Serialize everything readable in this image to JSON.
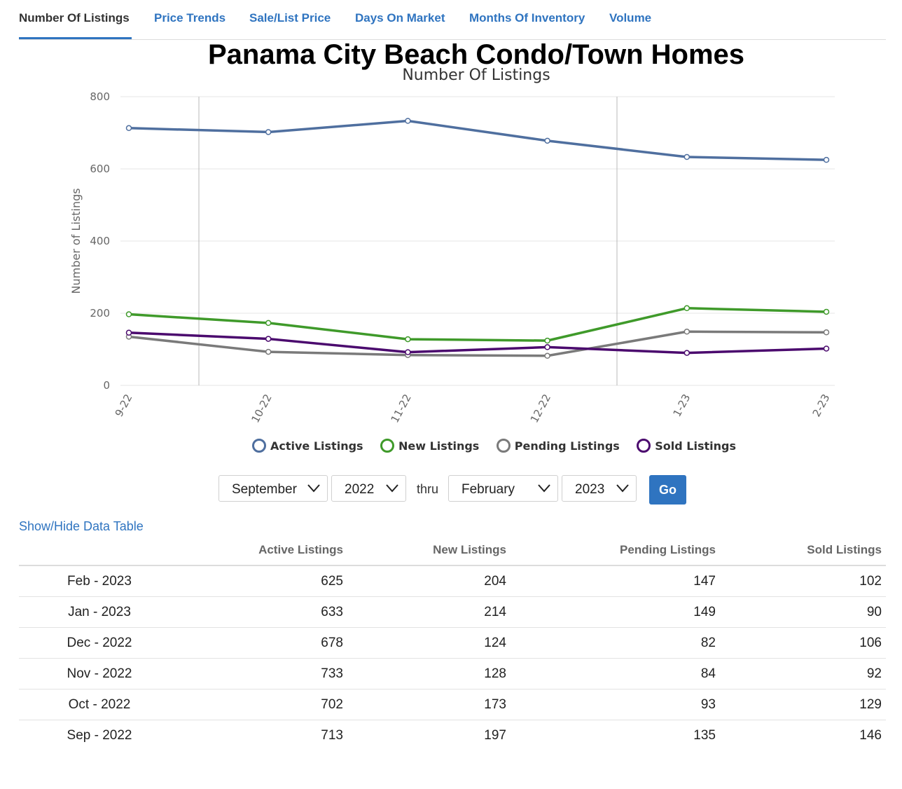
{
  "tabs": [
    {
      "label": "Number Of Listings",
      "active": true
    },
    {
      "label": "Price Trends"
    },
    {
      "label": "Sale/List Price"
    },
    {
      "label": "Days On Market"
    },
    {
      "label": "Months Of Inventory"
    },
    {
      "label": "Volume"
    }
  ],
  "page_title": "Panama City Beach Condo/Town Homes",
  "chart_data": {
    "type": "line",
    "title": "Number Of Listings",
    "ylabel": "Number of Listings",
    "xlabel": "",
    "categories": [
      "9-22",
      "10-22",
      "11-22",
      "12-22",
      "1-23",
      "2-23"
    ],
    "ylim": [
      0,
      800
    ],
    "yticks": [
      0,
      200,
      400,
      600,
      800
    ],
    "grid": true,
    "legend_position": "bottom",
    "series": [
      {
        "name": "Active Listings",
        "color": "#4f6f9f",
        "values": [
          713,
          702,
          733,
          678,
          633,
          625
        ]
      },
      {
        "name": "New Listings",
        "color": "#3f9a2a",
        "values": [
          197,
          173,
          128,
          124,
          214,
          204
        ]
      },
      {
        "name": "Pending Listings",
        "color": "#7a7a7a",
        "values": [
          135,
          93,
          84,
          82,
          149,
          147
        ]
      },
      {
        "name": "Sold Listings",
        "color": "#4b0a6e",
        "values": [
          146,
          129,
          92,
          106,
          90,
          102
        ]
      }
    ]
  },
  "controls": {
    "start_month": "September",
    "start_year": "2022",
    "thru_label": "thru",
    "end_month": "February",
    "end_year": "2023",
    "go_label": "Go"
  },
  "toggle_label": "Show/Hide Data Table",
  "table": {
    "headers": [
      "",
      "Active Listings",
      "New Listings",
      "Pending Listings",
      "Sold Listings"
    ],
    "rows": [
      [
        "Feb - 2023",
        "625",
        "204",
        "147",
        "102"
      ],
      [
        "Jan - 2023",
        "633",
        "214",
        "149",
        "90"
      ],
      [
        "Dec - 2022",
        "678",
        "124",
        "82",
        "106"
      ],
      [
        "Nov - 2022",
        "733",
        "128",
        "84",
        "92"
      ],
      [
        "Oct - 2022",
        "702",
        "173",
        "93",
        "129"
      ],
      [
        "Sep - 2022",
        "713",
        "197",
        "135",
        "146"
      ]
    ]
  }
}
